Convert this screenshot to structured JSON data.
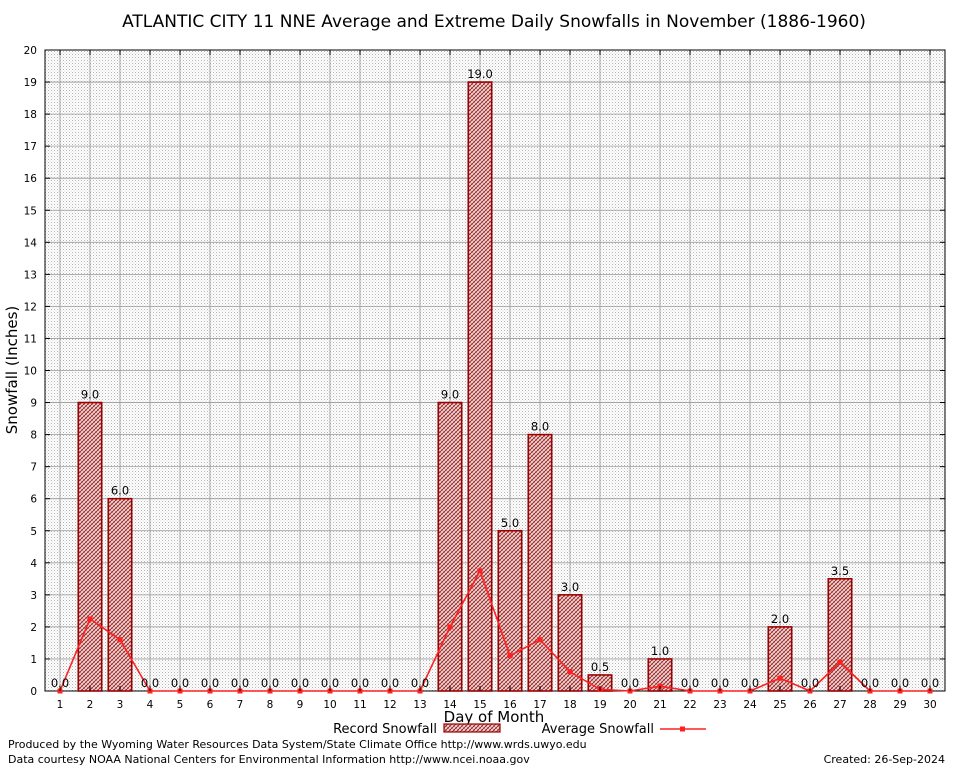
{
  "chart_data": {
    "type": "bar",
    "title": "ATLANTIC CITY 11 NNE Average and Extreme Daily Snowfalls in November (1886-1960)",
    "xlabel": "Day of Month",
    "ylabel": "Snowfall (Inches)",
    "ylim": [
      0,
      20
    ],
    "yticks": [
      "0",
      "1",
      "2",
      "3",
      "4",
      "5",
      "6",
      "7",
      "8",
      "9",
      "10",
      "11",
      "12",
      "13",
      "14",
      "15",
      "16",
      "17",
      "18",
      "19",
      "20"
    ],
    "categories": [
      "1",
      "2",
      "3",
      "4",
      "5",
      "6",
      "7",
      "8",
      "9",
      "10",
      "11",
      "12",
      "13",
      "14",
      "15",
      "16",
      "17",
      "18",
      "19",
      "20",
      "21",
      "22",
      "23",
      "24",
      "25",
      "26",
      "27",
      "28",
      "29",
      "30"
    ],
    "grid": true,
    "legend_position": "bottom",
    "series": [
      {
        "name": "Record Snowfall",
        "type": "bar",
        "color": "#990000",
        "values": [
          0,
          9,
          6,
          0,
          0,
          0,
          0,
          0,
          0,
          0,
          0,
          0,
          0,
          9,
          19,
          5,
          8,
          3,
          0.5,
          0,
          1,
          0,
          0,
          0,
          2,
          0,
          3.5,
          0,
          0,
          0
        ],
        "labels": [
          "0.0",
          "9.0",
          "6.0",
          "0.0",
          "0.0",
          "0.0",
          "0.0",
          "0.0",
          "0.0",
          "0.0",
          "0.0",
          "0.0",
          "0.0",
          "9.0",
          "19.0",
          "5.0",
          "8.0",
          "3.0",
          "0.5",
          "0.0",
          "1.0",
          "0.0",
          "0.0",
          "0.0",
          "2.0",
          "0.0",
          "3.5",
          "0.0",
          "0.0",
          "0.0"
        ]
      },
      {
        "name": "Average Snowfall",
        "type": "line",
        "color": "#ff2020",
        "values": [
          0,
          2.25,
          1.6,
          0,
          0,
          0,
          0,
          0,
          0,
          0,
          0,
          0,
          0,
          2.0,
          3.75,
          1.1,
          1.6,
          0.6,
          0.05,
          0,
          0.15,
          0,
          0,
          0,
          0.4,
          0,
          0.9,
          0,
          0,
          0
        ]
      }
    ]
  },
  "footer": {
    "produced_by": "Produced by the Wyoming Water Resources Data System/State Climate Office http://www.wrds.uwyo.edu",
    "courtesy": "Data courtesy NOAA National Centers for Environmental Information http://www.ncei.noaa.gov",
    "created": "Created: 26-Sep-2024"
  }
}
